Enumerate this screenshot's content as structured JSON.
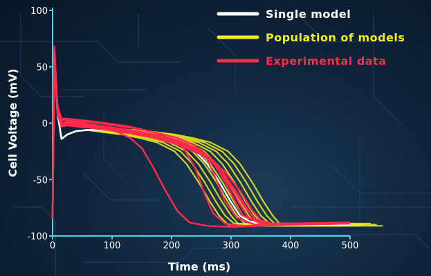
{
  "chart_data": {
    "type": "line",
    "xlabel": "Time (ms)",
    "ylabel": "Cell Voltage (mV)",
    "xlim": [
      0,
      500
    ],
    "ylim": [
      -100,
      100
    ],
    "xticks": [
      0,
      100,
      200,
      300,
      400,
      500
    ],
    "yticks": [
      100,
      50,
      0,
      -50,
      -100
    ],
    "grid": false,
    "legend_position": "top-right",
    "axis_color": "#4fd0e6",
    "background_color": "#0d2238",
    "series": [
      {
        "name": "Single model",
        "color": "#ffffff",
        "x": [
          0,
          3,
          8,
          15,
          25,
          40,
          60,
          90,
          120,
          150,
          180,
          210,
          240,
          260,
          280,
          300,
          315,
          330,
          350,
          380,
          420,
          460,
          500
        ],
        "y": [
          -85,
          62,
          10,
          -14,
          -10,
          -7,
          -6,
          -6,
          -8,
          -10,
          -13,
          -17,
          -25,
          -36,
          -52,
          -70,
          -82,
          -87,
          -89,
          -89,
          -90,
          -90,
          -90
        ]
      },
      {
        "name": "Population of models",
        "color": "#f2ee1d",
        "traces": [
          {
            "shift": -35,
            "base": -90
          },
          {
            "shift": -25,
            "base": -89
          },
          {
            "shift": -15,
            "base": -91
          },
          {
            "shift": -5,
            "base": -90
          },
          {
            "shift": 5,
            "base": -89
          },
          {
            "shift": 15,
            "base": -91
          },
          {
            "shift": 25,
            "base": -90
          },
          {
            "shift": 35,
            "base": -89
          },
          {
            "shift": 45,
            "base": -90
          },
          {
            "shift": 55,
            "base": -91
          }
        ]
      },
      {
        "name": "Experimental data",
        "color": "#ff2a4d",
        "traces": [
          {
            "x": [
              0,
              3,
              8,
              15,
              25,
              40,
              60,
              90,
              110,
              130,
              150,
              170,
              190,
              210,
              230,
              260,
              300,
              400,
              500
            ],
            "y": [
              -85,
              68,
              18,
              -2,
              0,
              0,
              -2,
              -5,
              -8,
              -13,
              -22,
              -40,
              -60,
              -78,
              -88,
              -91,
              -92,
              -90,
              -89
            ]
          },
          {
            "x": [
              0,
              3,
              8,
              15,
              25,
              40,
              60,
              90,
              130,
              170,
              200,
              220,
              240,
              255,
              270,
              290,
              320,
              400,
              500
            ],
            "y": [
              -85,
              66,
              14,
              4,
              4,
              3,
              2,
              0,
              -3,
              -8,
              -14,
              -22,
              -40,
              -62,
              -80,
              -89,
              -91,
              -90,
              -89
            ]
          },
          {
            "x": [
              0,
              3,
              8,
              15,
              25,
              40,
              60,
              90,
              130,
              170,
              210,
              240,
              260,
              275,
              290,
              310,
              340,
              400,
              500
            ],
            "y": [
              -85,
              65,
              13,
              2,
              3,
              2,
              1,
              -1,
              -4,
              -8,
              -13,
              -20,
              -32,
              -50,
              -70,
              -84,
              -90,
              -89,
              -88
            ]
          },
          {
            "x": [
              0,
              3,
              8,
              15,
              25,
              40,
              60,
              90,
              130,
              170,
              210,
              240,
              270,
              290,
              305,
              320,
              350,
              400,
              500
            ],
            "y": [
              -85,
              64,
              12,
              0,
              1,
              0,
              -1,
              -3,
              -6,
              -10,
              -15,
              -22,
              -35,
              -52,
              -68,
              -82,
              -89,
              -89,
              -88
            ]
          },
          {
            "x": [
              0,
              3,
              8,
              15,
              25,
              40,
              60,
              90,
              130,
              170,
              210,
              250,
              280,
              300,
              315,
              330,
              360,
              420,
              500
            ],
            "y": [
              -85,
              63,
              11,
              -1,
              0,
              -1,
              -2,
              -4,
              -7,
              -11,
              -17,
              -26,
              -40,
              -58,
              -72,
              -84,
              -89,
              -89,
              -88
            ]
          },
          {
            "x": [
              0,
              3,
              8,
              15,
              25,
              40,
              60,
              90,
              130,
              170,
              210,
              250,
              280,
              305,
              325,
              340,
              365,
              420,
              500
            ],
            "y": [
              -85,
              62,
              10,
              -2,
              -1,
              -2,
              -3,
              -5,
              -8,
              -12,
              -18,
              -27,
              -40,
              -58,
              -74,
              -85,
              -90,
              -89,
              -88
            ]
          },
          {
            "x": [
              0,
              3,
              8,
              15,
              25,
              40,
              60,
              90,
              130,
              170,
              210,
              250,
              290,
              315,
              335,
              350,
              375,
              430,
              500
            ],
            "y": [
              -85,
              61,
              9,
              -3,
              -2,
              -3,
              -4,
              -6,
              -9,
              -13,
              -19,
              -28,
              -43,
              -60,
              -77,
              -86,
              -90,
              -89,
              -88
            ]
          },
          {
            "x": [
              0,
              3,
              8,
              15,
              25,
              40,
              60,
              90,
              130,
              170,
              210,
              250,
              280,
              300,
              320,
              340,
              370,
              430,
              500
            ],
            "y": [
              -85,
              66,
              16,
              3,
              2,
              1,
              -1,
              -3,
              -6,
              -10,
              -16,
              -24,
              -38,
              -55,
              -72,
              -85,
              -90,
              -89,
              -89
            ]
          }
        ]
      }
    ]
  }
}
